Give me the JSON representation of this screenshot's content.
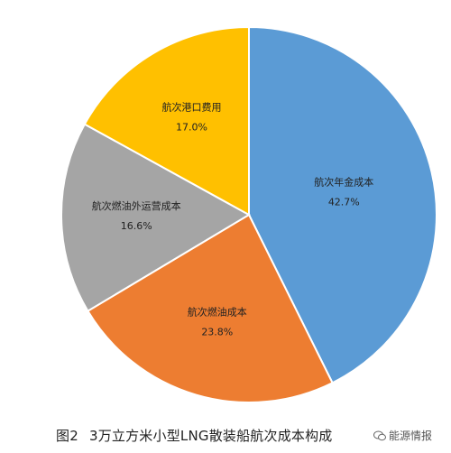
{
  "chart_data": {
    "type": "pie",
    "title": "3万立方米小型LNG散装船航次成本构成",
    "figure_label": "图2",
    "labels": [
      "航次年金成本",
      "航次燃油成本",
      "航次燃油外运营成本",
      "航次港口费用"
    ],
    "values": [
      42.7,
      23.8,
      16.6,
      17.0
    ],
    "value_labels": [
      "42.7%",
      "23.8%",
      "16.6%",
      "17.0%"
    ],
    "colors": [
      "#5b9bd5",
      "#ed7d31",
      "#a5a5a5",
      "#ffc000"
    ],
    "start_angle": "12 o'clock",
    "direction": "clockwise"
  },
  "watermark": {
    "text": "能源情报"
  }
}
